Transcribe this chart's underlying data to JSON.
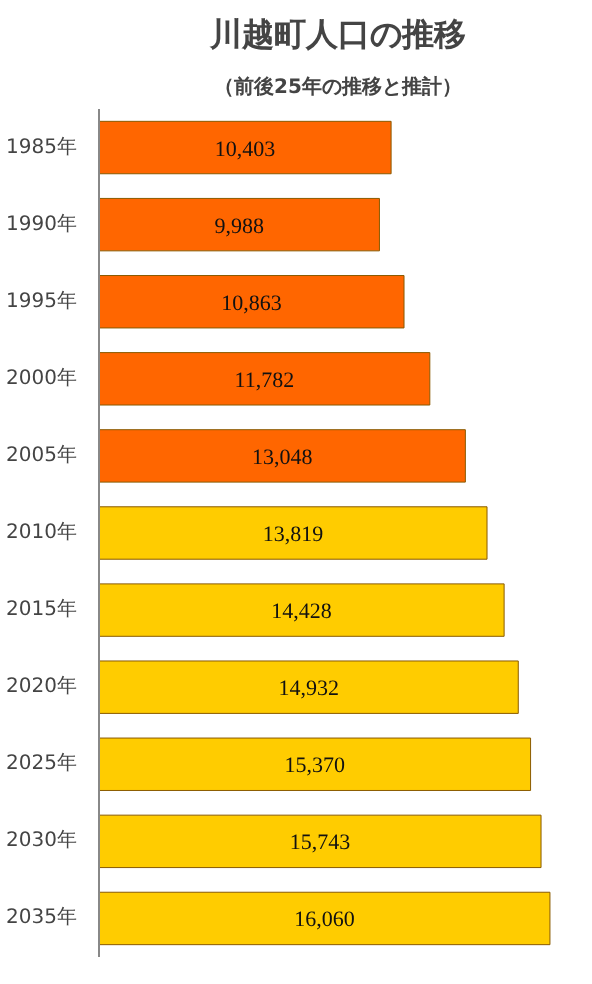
{
  "chart_data": {
    "type": "bar",
    "orientation": "horizontal",
    "title": "川越町人口の推移",
    "subtitle": "（前後25年の推移と推計）",
    "categories": [
      "1985年",
      "1990年",
      "1995年",
      "2000年",
      "2005年",
      "2010年",
      "2015年",
      "2020年",
      "2025年",
      "2030年",
      "2035年"
    ],
    "values": [
      10403,
      9988,
      10863,
      11782,
      13048,
      13819,
      14428,
      14932,
      15370,
      15743,
      16060
    ],
    "colors": [
      "#ff6600",
      "#ff6600",
      "#ff6600",
      "#ff6600",
      "#ff6600",
      "#ffcc00",
      "#ffcc00",
      "#ffcc00",
      "#ffcc00",
      "#ffcc00",
      "#ffcc00"
    ],
    "value_labels": [
      "10,403",
      "9,988",
      "10,863",
      "11,782",
      "13,048",
      "13,819",
      "14,428",
      "14,932",
      "15,370",
      "15,743",
      "16,060"
    ]
  }
}
